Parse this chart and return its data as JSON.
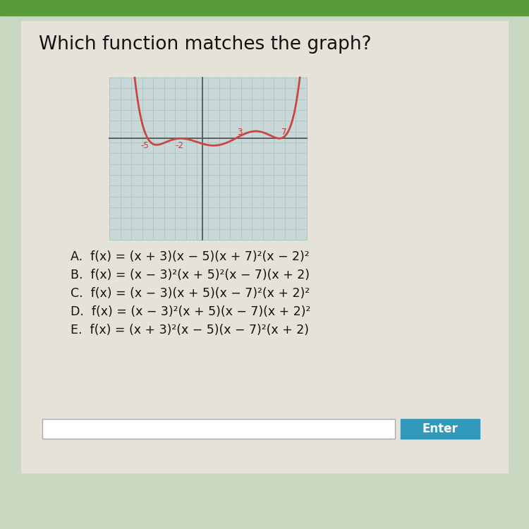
{
  "title": "Which function matches the graph?",
  "title_fontsize": 19,
  "title_color": "#111111",
  "bg_outer": "#c8d8c0",
  "bg_paper": "#e8e4dc",
  "graph_bg": "#c8d8d8",
  "grid_color": "#a8c0c0",
  "curve_color": "#cc4444",
  "axis_color": "#555555",
  "label_color": "#cc3333",
  "green_bar": "#5a9a3a",
  "options": [
    "A.  f(x) = (x + 3)(x − 5)(x + 7)²(x − 2)²",
    "B.  f(x) = (x − 3)²(x + 5)²(x − 7)(x + 2)",
    "C.  f(x) = (x − 3)(x + 5)(x − 7)²(x + 2)²",
    "D.  f(x) = (x − 3)²(x + 5)(x − 7)(x + 2)²",
    "E.  f(x) = (x + 3)²(x − 5)(x − 7)²(x + 2)"
  ],
  "options_fontsize": 12.5,
  "enter_btn_color": "#3399bb",
  "enter_btn_text": "Enter",
  "enter_fontsize": 12,
  "xlim": [
    -8.5,
    9.5
  ],
  "ylim": [
    -10,
    6
  ],
  "curve_scale": 0.00018,
  "x_labels": [
    -5,
    -2,
    3,
    7
  ]
}
